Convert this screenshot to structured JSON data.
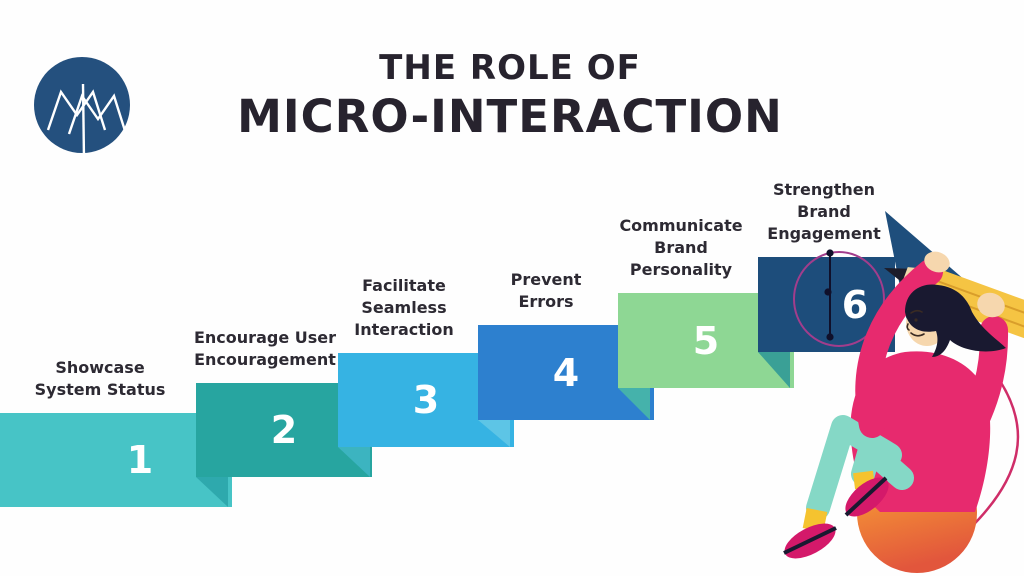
{
  "logo": {
    "monogram": "MM",
    "circle_color": "#24507e",
    "mark_color": "#ffffff"
  },
  "header": {
    "title_line1": "THE ROLE OF",
    "title_line2": "MICRO-INTERACTION",
    "title_color": "#27232e"
  },
  "steps": [
    {
      "number": "1",
      "label": "Showcase\nSystem Status",
      "color": "#47c4c6",
      "fold_color": null
    },
    {
      "number": "2",
      "label": "Encourage User\nEncouragement",
      "color": "#27a5a0",
      "fold_color": "#2ea9ad"
    },
    {
      "number": "3",
      "label": "Facilitate\nSeamless\nInteraction",
      "color": "#36b3e3",
      "fold_color": "#3cb4c0"
    },
    {
      "number": "4",
      "label": "Prevent\nErrors",
      "color": "#2d80cf",
      "fold_color": "#5dc5e6"
    },
    {
      "number": "5",
      "label": "Communicate\nBrand\nPersonality",
      "color": "#8ed794",
      "fold_color": "#45b2ab"
    },
    {
      "number": "6",
      "label": "Strengthen\nBrand\nEngagement",
      "color": "#1d4d7b",
      "fold_color": "#3aa096"
    }
  ],
  "label_text_color": "#2d2a33",
  "number_text_color": "#ffffff",
  "background_color": "#fefefe",
  "illustration": {
    "triangle_navy": "#1e4e7c",
    "pencil_body": "#f5c443",
    "pencil_stripe": "#d99e2b",
    "pencil_wood": "#f0d9ac",
    "pencil_tip": "#1d1d2b",
    "skin": "#f6d7ae",
    "hair": "#191930",
    "sweater": "#e72a6e",
    "pants": "#85d8c6",
    "socks": "#f5c32f",
    "shoes": "#d4196a",
    "ball_top": "#f8c933",
    "ball_mid": "#f08437",
    "ball_bottom": "#e2563c",
    "curve_pink": "#cf2d68",
    "pen_path_stroke": "#a23d8c",
    "pen_anchor": "#10102a"
  }
}
